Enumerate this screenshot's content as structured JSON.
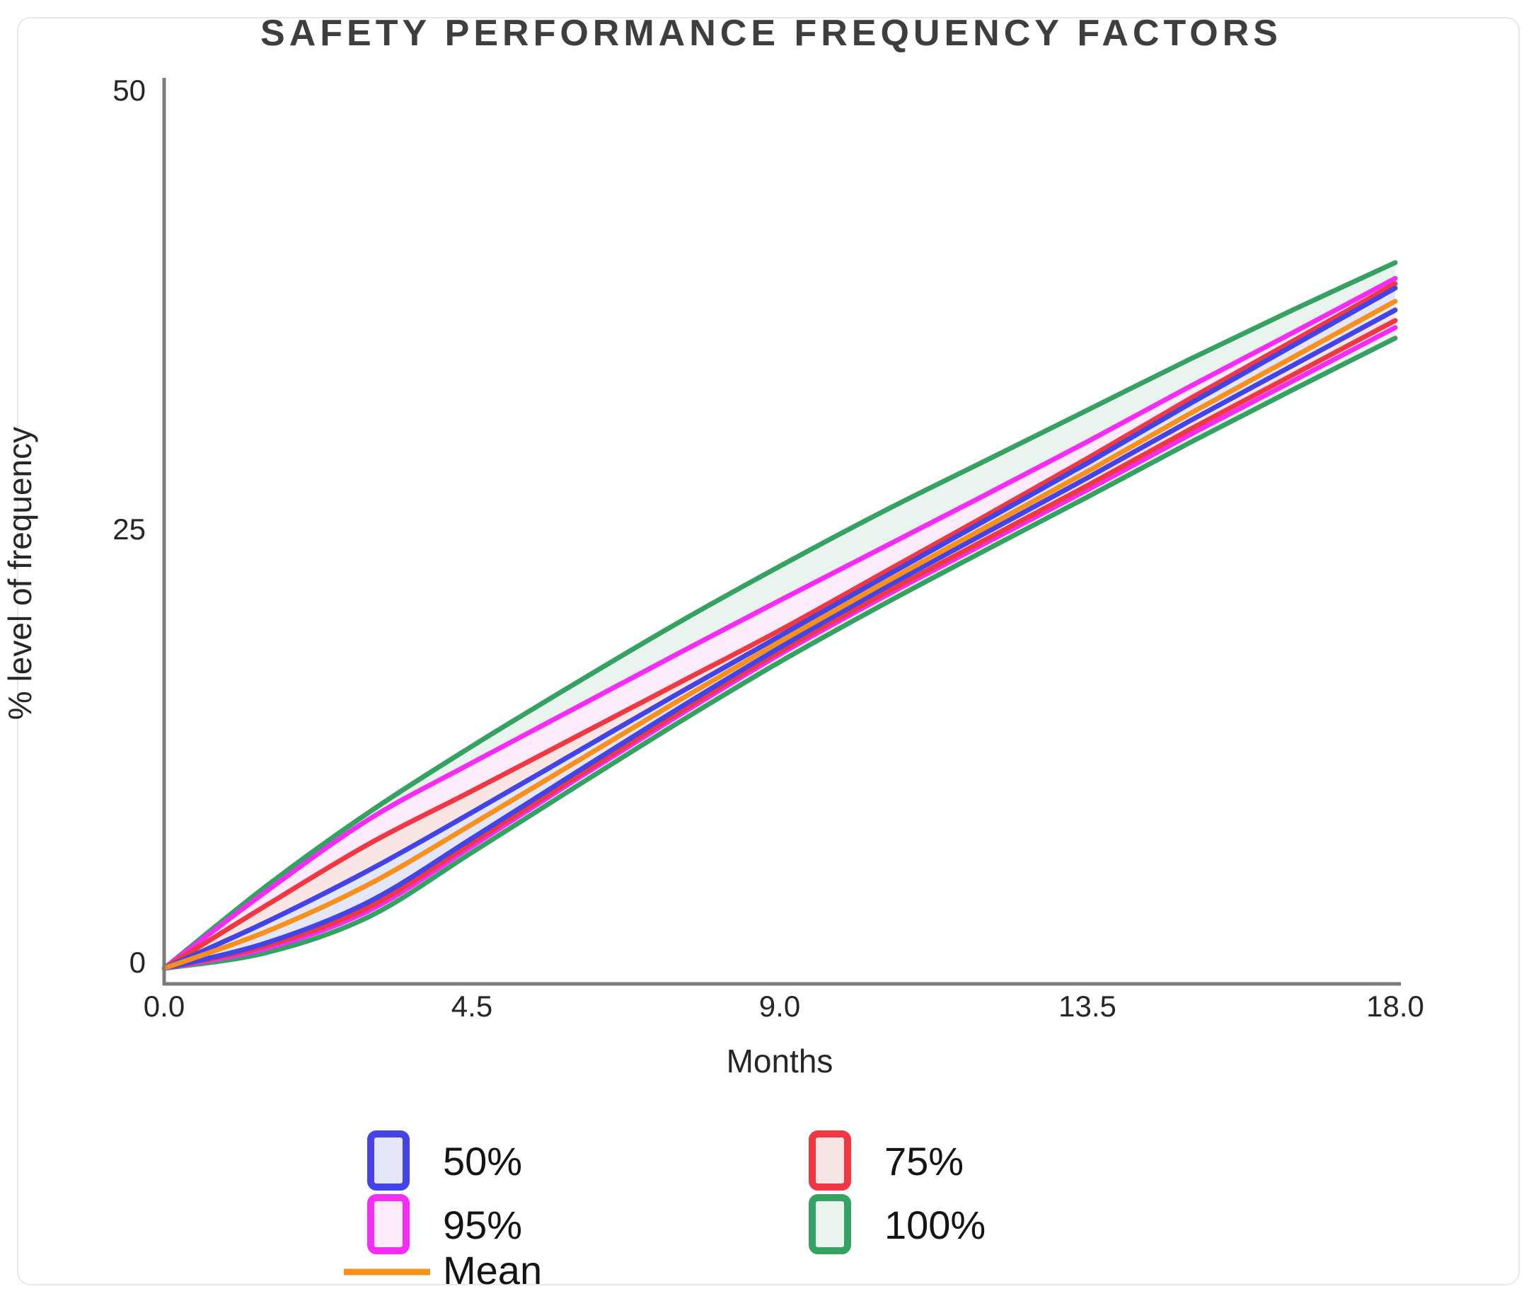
{
  "figure": {
    "title": "SAFETY PERFORMANCE FREQUENCY FACTORS",
    "x_axis": {
      "label": "Months",
      "ticks": [
        "0.0",
        "4.5",
        "9.0",
        "13.5",
        "18.0"
      ]
    },
    "y_axis": {
      "label": "% level of frequency",
      "ticks": [
        "0",
        "25",
        "50"
      ]
    },
    "legend": [
      {
        "label": "50%",
        "color": "#4343e6",
        "fill": "#e4e7f9"
      },
      {
        "label": "75%",
        "color": "#ee3944",
        "fill": "#fae5e5"
      },
      {
        "label": "95%",
        "color": "#f42cf4",
        "fill": "#fcebfa"
      },
      {
        "label": "100%",
        "color": "#35a263",
        "fill": "#e9f4ee"
      },
      {
        "label": "Mean",
        "color": "#f8901d"
      }
    ]
  },
  "chart_data": {
    "type": "line",
    "title": "SAFETY PERFORMANCE FREQUENCY FACTORS",
    "xlabel": "Months",
    "ylabel": "% level of frequency",
    "xlim": [
      0,
      18
    ],
    "ylim": [
      0,
      50
    ],
    "x_ticks": [
      0,
      4.5,
      9,
      13.5,
      18
    ],
    "y_ticks": [
      0,
      25,
      50
    ],
    "grid": false,
    "legend_position": "bottom",
    "months": [
      0,
      1.5,
      3,
      4.5,
      6,
      7.5,
      9,
      10.5,
      12,
      13.5,
      15,
      16.5,
      18
    ],
    "series": [
      {
        "name": "100%",
        "type": "band",
        "color": "#35a263",
        "fill": "#e9f4ee",
        "upper": [
          0,
          4.7,
          8.9,
          12.65,
          16.2,
          19.65,
          22.9,
          26.0,
          28.9,
          31.8,
          34.7,
          37.5,
          40.2
        ],
        "lower": [
          0,
          0.9,
          2.95,
          6.6,
          10.3,
          13.95,
          17.45,
          20.7,
          23.8,
          26.85,
          29.95,
          32.95,
          35.9
        ]
      },
      {
        "name": "95%",
        "type": "band",
        "color": "#f42cf4",
        "fill": "#fcebfa",
        "upper": [
          0,
          4.4,
          8.5,
          11.7,
          14.8,
          17.9,
          20.95,
          23.95,
          26.95,
          30.0,
          33.15,
          36.2,
          39.3
        ],
        "lower": [
          0,
          1.15,
          3.3,
          6.95,
          10.7,
          14.35,
          17.88,
          21.12,
          24.2,
          27.25,
          30.4,
          33.45,
          36.5
        ]
      },
      {
        "name": "75%",
        "type": "band",
        "color": "#ee3944",
        "fill": "#fae5e5",
        "upper": [
          0,
          3.6,
          7.1,
          10.1,
          13.15,
          16.2,
          19.25,
          22.5,
          25.75,
          29.05,
          32.45,
          35.72,
          39.0
        ],
        "lower": [
          0,
          1.3,
          3.5,
          7.15,
          10.85,
          14.52,
          18.05,
          21.3,
          24.4,
          27.5,
          30.7,
          33.8,
          36.9
        ]
      },
      {
        "name": "50%",
        "type": "band",
        "color": "#4343e6",
        "fill": "#e4e7f9",
        "upper": [
          0,
          2.65,
          5.6,
          8.88,
          12.25,
          15.62,
          18.92,
          22.23,
          25.5,
          28.78,
          32.17,
          35.46,
          38.75
        ],
        "lower": [
          0,
          1.45,
          3.8,
          7.4,
          11.1,
          14.75,
          18.27,
          21.6,
          24.78,
          27.94,
          31.19,
          34.34,
          37.5
        ]
      },
      {
        "name": "Mean",
        "type": "line",
        "color": "#f8901d",
        "values": [
          0,
          2.1,
          4.8,
          8.2,
          11.7,
          15.2,
          18.6,
          21.9,
          25.1,
          28.3,
          31.6,
          34.8,
          38.0
        ]
      }
    ]
  }
}
